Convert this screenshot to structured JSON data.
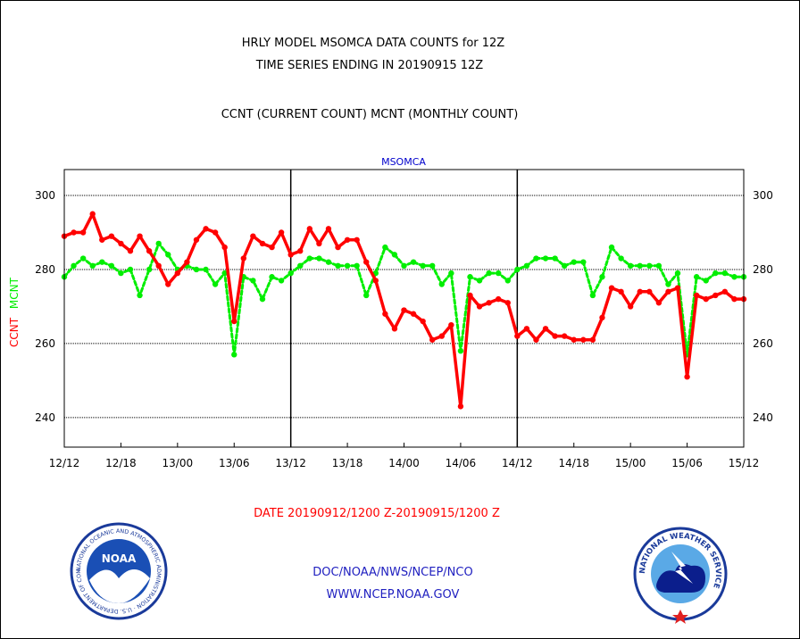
{
  "header": {
    "line1": "HRLY MODEL MSOMCA DATA COUNTS for 12Z",
    "line2": "TIME SERIES ENDING IN 20190915 12Z",
    "line3": "CCNT (CURRENT COUNT) MCNT (MONTHLY COUNT)"
  },
  "footer": {
    "date_range": "DATE 20190912/1200 Z-20190915/1200 Z",
    "org": "DOC/NOAA/NWS/NCEP/NCO",
    "url": "WWW.NCEP.NOAA.GOV"
  },
  "logos": {
    "noaa_text": "NOAA",
    "noaa_ring": "NATIONAL OCEANIC AND ATMOSPHERIC ADMINISTRATION · U.S. DEPARTMENT OF COMMERCE",
    "nws_ring": "NATIONAL WEATHER SERVICE"
  },
  "colors": {
    "ccnt": "#ff0000",
    "mcnt": "#00ee00",
    "title_blue": "#0000cc",
    "footer_blue": "#2020c0"
  },
  "chart_data": {
    "type": "line",
    "title": "MSOMCA",
    "ylabel_parts": [
      {
        "text": "CCNT",
        "series": "CCNT"
      },
      {
        "text": "MCNT",
        "series": "MCNT"
      }
    ],
    "x_ticks": [
      "12/12",
      "12/18",
      "13/00",
      "13/06",
      "13/12",
      "13/18",
      "14/00",
      "14/06",
      "14/12",
      "14/18",
      "15/00",
      "15/06",
      "15/12"
    ],
    "x_range_hours": [
      0,
      72
    ],
    "ylim": [
      232,
      307
    ],
    "y_ticks": [
      240,
      260,
      280,
      300
    ],
    "grid": true,
    "day_separators": [
      "13/12",
      "14/12"
    ],
    "series": [
      {
        "name": "CCNT",
        "style": "solid",
        "values": [
          289,
          290,
          290,
          295,
          288,
          289,
          287,
          285,
          289,
          285,
          281,
          276,
          279,
          282,
          288,
          291,
          290,
          286,
          266,
          283,
          289,
          287,
          286,
          290,
          284,
          285,
          291,
          287,
          291,
          286,
          288,
          288,
          282,
          277,
          268,
          264,
          269,
          268,
          266,
          261,
          262,
          265,
          243,
          273,
          270,
          271,
          272,
          271,
          262,
          264,
          261,
          264,
          262,
          262,
          261,
          261,
          261,
          267,
          275,
          274,
          270,
          274,
          274,
          271,
          274,
          275,
          251,
          273,
          272,
          273,
          274,
          272,
          272
        ]
      },
      {
        "name": "MCNT",
        "style": "dashed",
        "values": [
          278,
          281,
          283,
          281,
          282,
          281,
          279,
          280,
          273,
          280,
          287,
          284,
          280,
          281,
          280,
          280,
          276,
          279,
          257,
          278,
          277,
          272,
          278,
          277,
          279,
          281,
          283,
          283,
          282,
          281,
          281,
          281,
          273,
          279,
          286,
          284,
          281,
          282,
          281,
          281,
          276,
          279,
          258,
          278,
          277,
          279,
          279,
          277,
          280,
          281,
          283,
          283,
          283,
          281,
          282,
          282,
          273,
          278,
          286,
          283,
          281,
          281,
          281,
          281,
          276,
          279,
          257,
          278,
          277,
          279,
          279,
          278,
          278
        ]
      }
    ]
  }
}
